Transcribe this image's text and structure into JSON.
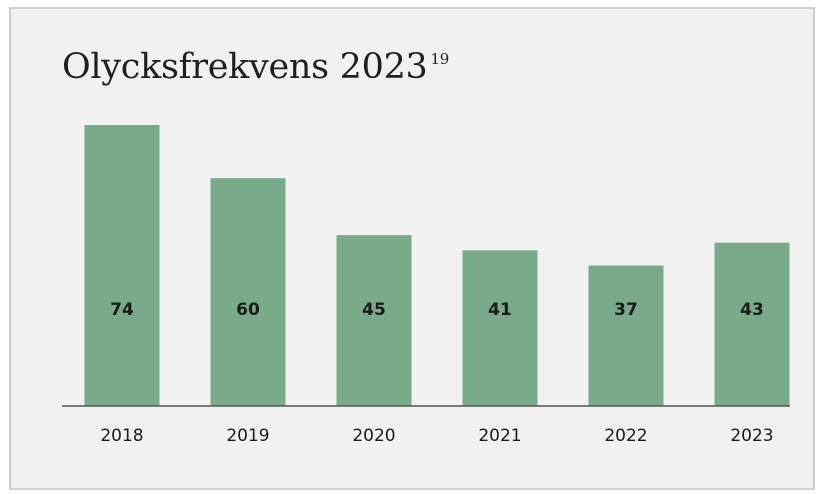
{
  "title": "Olycksfrekvens 2023",
  "title_footnote": "19",
  "colors": {
    "bar": "#79ab8b",
    "panel_background": "#f1f1f1",
    "baseline": "#555555"
  },
  "chart_data": {
    "type": "bar",
    "title": "Olycksfrekvens 2023",
    "categories": [
      "2018",
      "2019",
      "2020",
      "2021",
      "2022",
      "2023"
    ],
    "values": [
      74,
      60,
      45,
      41,
      37,
      43
    ],
    "data_labels": [
      "74",
      "60",
      "45",
      "41",
      "37",
      "43"
    ],
    "xlabel": "",
    "ylabel": "",
    "ylim": [
      0,
      74
    ],
    "grid": false,
    "legend": "none"
  }
}
